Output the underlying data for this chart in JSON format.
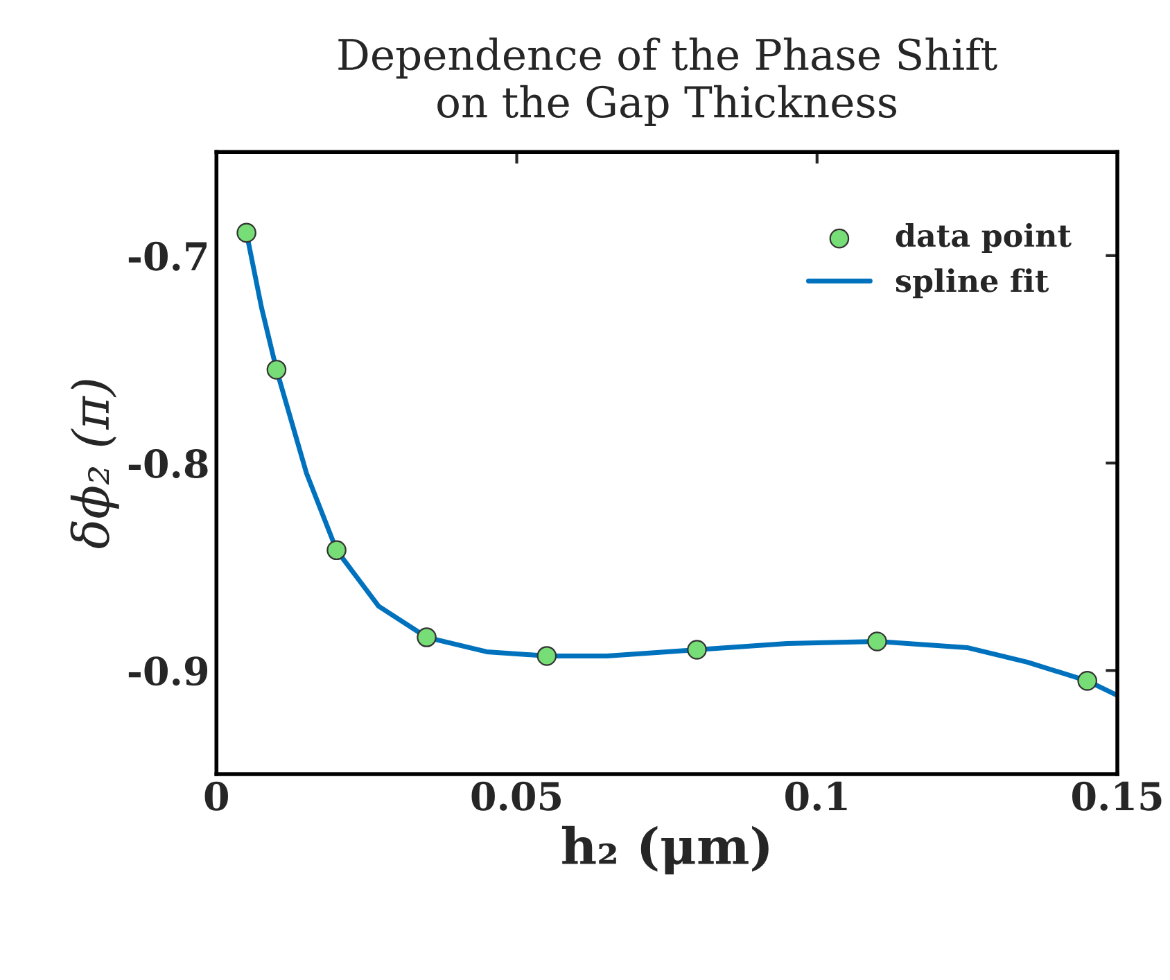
{
  "chart_data": {
    "type": "scatter",
    "title": "Dependence of the Phase Shift\non the Gap Thickness",
    "xlabel": "h₂ (μm)",
    "ylabel": "δϕ₂ (π)",
    "xlim": [
      0,
      0.15
    ],
    "ylim": [
      -0.95,
      -0.65
    ],
    "xticks": [
      0,
      0.05,
      0.1,
      0.15
    ],
    "yticks": [
      -0.9,
      -0.8,
      -0.7
    ],
    "legend": "top right",
    "grid": false,
    "series": [
      {
        "name": "data point",
        "marker": "circle",
        "color": "#77dd77",
        "x": [
          0.005,
          0.01,
          0.02,
          0.035,
          0.055,
          0.08,
          0.11,
          0.145
        ],
        "values": [
          -0.689,
          -0.755,
          -0.842,
          -0.884,
          -0.893,
          -0.89,
          -0.886,
          -0.905
        ]
      },
      {
        "name": "spline fit",
        "type": "line",
        "marker": "none",
        "line_style": "solid",
        "color": "#0072bd",
        "x": [
          0.005,
          0.0075,
          0.01,
          0.015,
          0.02,
          0.027,
          0.035,
          0.045,
          0.055,
          0.065,
          0.08,
          0.095,
          0.11,
          0.125,
          0.135,
          0.145,
          0.15
        ],
        "values": [
          -0.689,
          -0.725,
          -0.755,
          -0.805,
          -0.842,
          -0.869,
          -0.884,
          -0.891,
          -0.893,
          -0.893,
          -0.89,
          -0.887,
          -0.886,
          -0.889,
          -0.896,
          -0.905,
          -0.912
        ]
      }
    ]
  }
}
